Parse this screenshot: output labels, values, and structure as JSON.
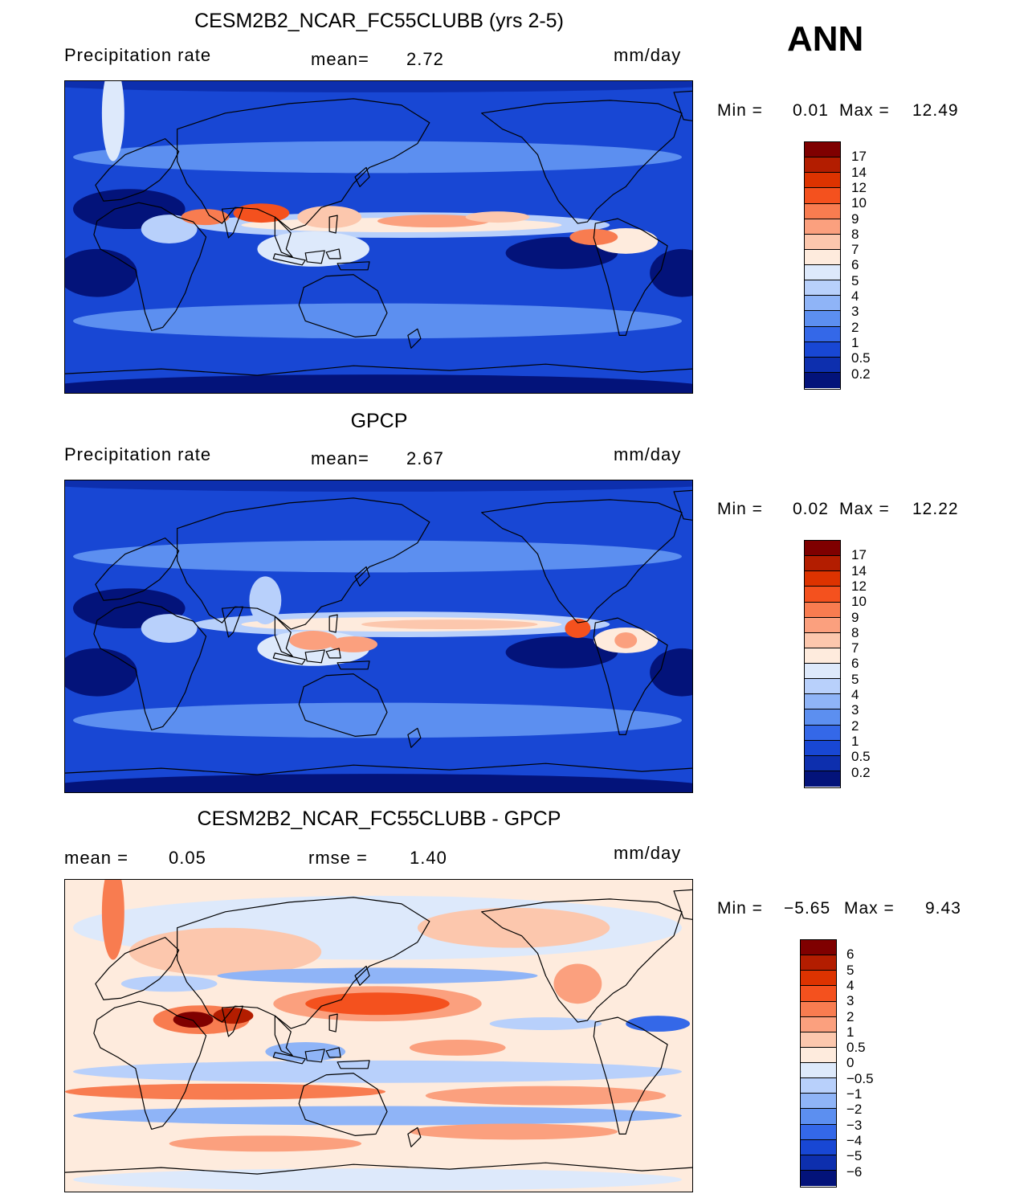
{
  "season": "ANN",
  "panels": [
    {
      "title": "CESM2B2_NCAR_FC55CLUBB (yrs 2-5)",
      "left_label": "Precipitation  rate",
      "center_label": "mean=",
      "center_value": "2.72",
      "units": "mm/day",
      "min_label": "Min  =",
      "min_value": "0.01",
      "max_label": "Max  =",
      "max_value": "12.49",
      "map_kind": "model"
    },
    {
      "title": "GPCP",
      "left_label": "Precipitation  rate",
      "center_label": "mean=",
      "center_value": "2.67",
      "units": "mm/day",
      "min_label": "Min  =",
      "min_value": "0.02",
      "max_label": "Max  =",
      "max_value": "12.22",
      "map_kind": "obs"
    },
    {
      "title": "CESM2B2_NCAR_FC55CLUBB - GPCP",
      "left_label": "mean  =",
      "left_value": "0.05",
      "center_label": "rmse  =",
      "center_value": "1.40",
      "units": "mm/day",
      "min_label": "Min  =",
      "min_value": "−5.65",
      "max_label": "Max  =",
      "max_value": "9.43",
      "map_kind": "diff"
    }
  ],
  "colorbars": {
    "precip": {
      "levels": [
        "17",
        "14",
        "12",
        "10",
        "9",
        "8",
        "7",
        "6",
        "5",
        "4",
        "3",
        "2",
        "1",
        "0.5",
        "0.2"
      ],
      "colors": [
        "#7f0000",
        "#b31d00",
        "#dd3300",
        "#f4511e",
        "#f87c50",
        "#fba07e",
        "#fcc7ad",
        "#feebdd",
        "#dde9fb",
        "#b8d0fb",
        "#8fb4f7",
        "#5c8ff0",
        "#3468e8",
        "#1847d4",
        "#0d2fae",
        "#03137a"
      ]
    },
    "diff": {
      "levels": [
        "6",
        "5",
        "4",
        "3",
        "2",
        "1",
        "0.5",
        "0",
        "−0.5",
        "−1",
        "−2",
        "−3",
        "−4",
        "−5",
        "−6"
      ],
      "colors": [
        "#7f0000",
        "#b31d00",
        "#dd3300",
        "#f4511e",
        "#f87c50",
        "#fba07e",
        "#fcc7ad",
        "#feebdd",
        "#dde9fb",
        "#b8d0fb",
        "#8fb4f7",
        "#5c8ff0",
        "#3468e8",
        "#1847d4",
        "#0d2fae",
        "#03137a"
      ]
    }
  },
  "chart_data": [
    {
      "type": "heatmap",
      "title": "CESM2B2_NCAR_FC55CLUBB (yrs 2-5)",
      "variable": "Precipitation rate",
      "units": "mm/day",
      "mean": 2.72,
      "min": 0.01,
      "max": 12.49,
      "contour_levels": [
        0.2,
        0.5,
        1,
        2,
        3,
        4,
        5,
        6,
        7,
        8,
        9,
        10,
        12,
        14,
        17
      ]
    },
    {
      "type": "heatmap",
      "title": "GPCP",
      "variable": "Precipitation rate",
      "units": "mm/day",
      "mean": 2.67,
      "min": 0.02,
      "max": 12.22,
      "contour_levels": [
        0.2,
        0.5,
        1,
        2,
        3,
        4,
        5,
        6,
        7,
        8,
        9,
        10,
        12,
        14,
        17
      ]
    },
    {
      "type": "heatmap",
      "title": "CESM2B2_NCAR_FC55CLUBB - GPCP",
      "units": "mm/day",
      "mean": 0.05,
      "rmse": 1.4,
      "min": -5.65,
      "max": 9.43,
      "contour_levels": [
        -6,
        -5,
        -4,
        -3,
        -2,
        -1,
        -0.5,
        0,
        0.5,
        1,
        2,
        3,
        4,
        5,
        6
      ]
    }
  ]
}
